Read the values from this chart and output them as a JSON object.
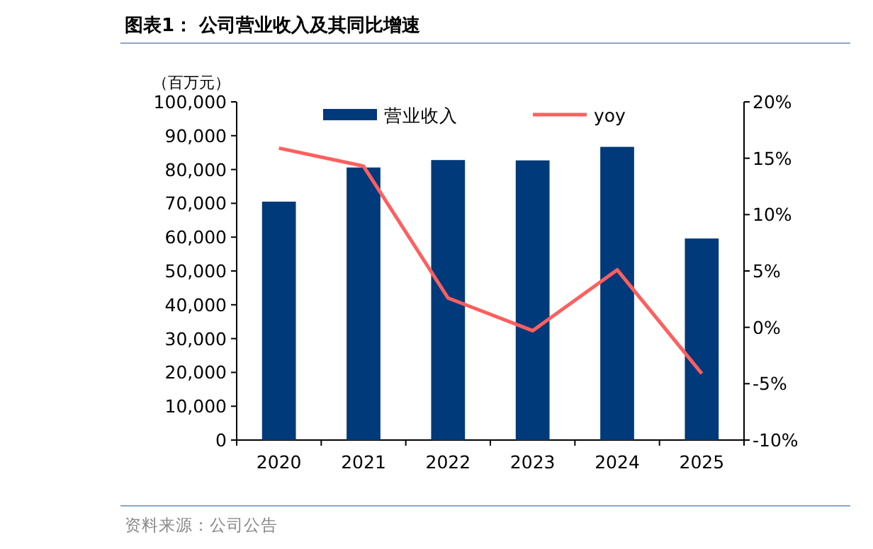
{
  "chart_data": {
    "type": "bar",
    "title": "图表1： 公司营业收入及其同比增速",
    "ylabel": "（百万元）",
    "categories": [
      "2020",
      "2021",
      "2022",
      "2023",
      "2024",
      "2025"
    ],
    "series": [
      {
        "name": "营业收入",
        "color": "#003a7a",
        "values": [
          70500,
          80600,
          82800,
          82700,
          86700,
          59600
        ]
      },
      {
        "name": "yoy",
        "type": "line",
        "axis": "y2",
        "color": "#ff5f5f",
        "values": [
          15.9,
          14.3,
          2.6,
          -0.3,
          5.1,
          -4.1
        ]
      }
    ],
    "ylim": [
      0,
      100000
    ],
    "yticks": [
      0,
      {
        "value": 10000,
        "label": "10,000"
      },
      {
        "value": 20000,
        "label": "20,000"
      },
      {
        "value": 30000,
        "label": "30,000"
      },
      {
        "value": 40000,
        "label": "40,000"
      },
      {
        "value": 50000,
        "label": "50,000"
      },
      {
        "value": 60000,
        "label": "60,000"
      },
      {
        "value": 70000,
        "label": "70,000"
      },
      {
        "value": 80000,
        "label": "80,000"
      },
      {
        "value": 90000,
        "label": "90,000"
      },
      {
        "value": 100000,
        "label": "100,000"
      }
    ],
    "y2lim": [
      -10,
      20
    ],
    "y2ticks": [
      {
        "value": -10,
        "label": "-10%"
      },
      {
        "value": -5,
        "label": "-5%"
      },
      {
        "value": 0,
        "label": "0%"
      },
      {
        "value": 5,
        "label": "5%"
      },
      {
        "value": 10,
        "label": "10%"
      },
      {
        "value": 15,
        "label": "15%"
      },
      {
        "value": 20,
        "label": "20%"
      }
    ],
    "legend": "top",
    "grid": false,
    "annotations": [
      "资料来源：公司公告"
    ]
  }
}
